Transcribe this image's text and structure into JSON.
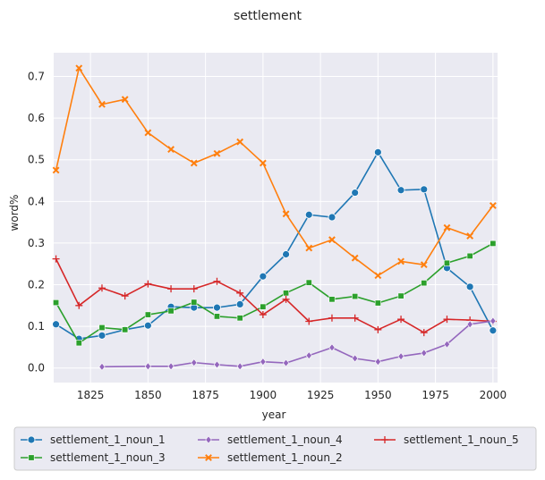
{
  "chart_data": {
    "type": "line",
    "title": "settlement",
    "xlabel": "year",
    "ylabel": "word%",
    "xlim": [
      1809,
      2002
    ],
    "ylim": [
      -0.035,
      0.757
    ],
    "xticks": [
      1825,
      1850,
      1875,
      1900,
      1925,
      1950,
      1975,
      2000
    ],
    "yticks": [
      0.0,
      0.1,
      0.2,
      0.3,
      0.4,
      0.5,
      0.6,
      0.7
    ],
    "ytick_labels": [
      "0.0",
      "0.1",
      "0.2",
      "0.3",
      "0.4",
      "0.5",
      "0.6",
      "0.7"
    ],
    "grid": true,
    "legend_placement": "bottom-center",
    "series": [
      {
        "name": "settlement_1_noun_1",
        "color": "#1f77b4",
        "marker": "circle",
        "x": [
          1810,
          1820,
          1830,
          1840,
          1850,
          1860,
          1870,
          1880,
          1890,
          1900,
          1910,
          1920,
          1930,
          1940,
          1950,
          1960,
          1970,
          1980,
          1990,
          2000
        ],
        "y": [
          0.105,
          0.07,
          0.078,
          0.092,
          0.102,
          0.147,
          0.145,
          0.145,
          0.153,
          0.22,
          0.273,
          0.368,
          0.362,
          0.421,
          0.518,
          0.427,
          0.429,
          0.24,
          0.195,
          0.09
        ]
      },
      {
        "name": "settlement_1_noun_2",
        "color": "#ff7f0e",
        "marker": "x",
        "x": [
          1810,
          1820,
          1830,
          1840,
          1850,
          1860,
          1870,
          1880,
          1890,
          1900,
          1910,
          1920,
          1930,
          1940,
          1950,
          1960,
          1970,
          1980,
          1990,
          2000
        ],
        "y": [
          0.475,
          0.72,
          0.633,
          0.645,
          0.565,
          0.525,
          0.492,
          0.515,
          0.543,
          0.492,
          0.37,
          0.288,
          0.308,
          0.264,
          0.222,
          0.256,
          0.248,
          0.337,
          0.317,
          0.39
        ]
      },
      {
        "name": "settlement_1_noun_3",
        "color": "#2ca02c",
        "marker": "square",
        "x": [
          1810,
          1820,
          1830,
          1840,
          1850,
          1860,
          1870,
          1880,
          1890,
          1900,
          1910,
          1920,
          1930,
          1940,
          1950,
          1960,
          1970,
          1980,
          1990,
          2000
        ],
        "y": [
          0.157,
          0.06,
          0.097,
          0.092,
          0.128,
          0.137,
          0.158,
          0.124,
          0.12,
          0.147,
          0.18,
          0.205,
          0.165,
          0.172,
          0.156,
          0.173,
          0.204,
          0.252,
          0.269,
          0.299
        ]
      },
      {
        "name": "settlement_1_noun_5",
        "color": "#d62728",
        "marker": "plus",
        "x": [
          1810,
          1820,
          1830,
          1840,
          1850,
          1860,
          1870,
          1880,
          1890,
          1900,
          1910,
          1920,
          1930,
          1940,
          1950,
          1960,
          1970,
          1980,
          1990,
          2000
        ],
        "y": [
          0.262,
          0.15,
          0.192,
          0.173,
          0.202,
          0.19,
          0.19,
          0.208,
          0.18,
          0.128,
          0.165,
          0.112,
          0.12,
          0.12,
          0.092,
          0.117,
          0.085,
          0.117,
          0.115,
          0.112
        ]
      },
      {
        "name": "settlement_1_noun_4",
        "color": "#9467bd",
        "marker": "diamond",
        "x": [
          1830,
          1850,
          1860,
          1870,
          1880,
          1890,
          1900,
          1910,
          1920,
          1930,
          1940,
          1950,
          1960,
          1970,
          1980,
          1990,
          2000
        ],
        "y": [
          0.003,
          0.004,
          0.004,
          0.013,
          0.008,
          0.004,
          0.015,
          0.012,
          0.03,
          0.049,
          0.023,
          0.015,
          0.028,
          0.036,
          0.057,
          0.105,
          0.113
        ]
      }
    ],
    "legend_order": [
      0,
      2,
      4,
      1,
      3
    ]
  }
}
